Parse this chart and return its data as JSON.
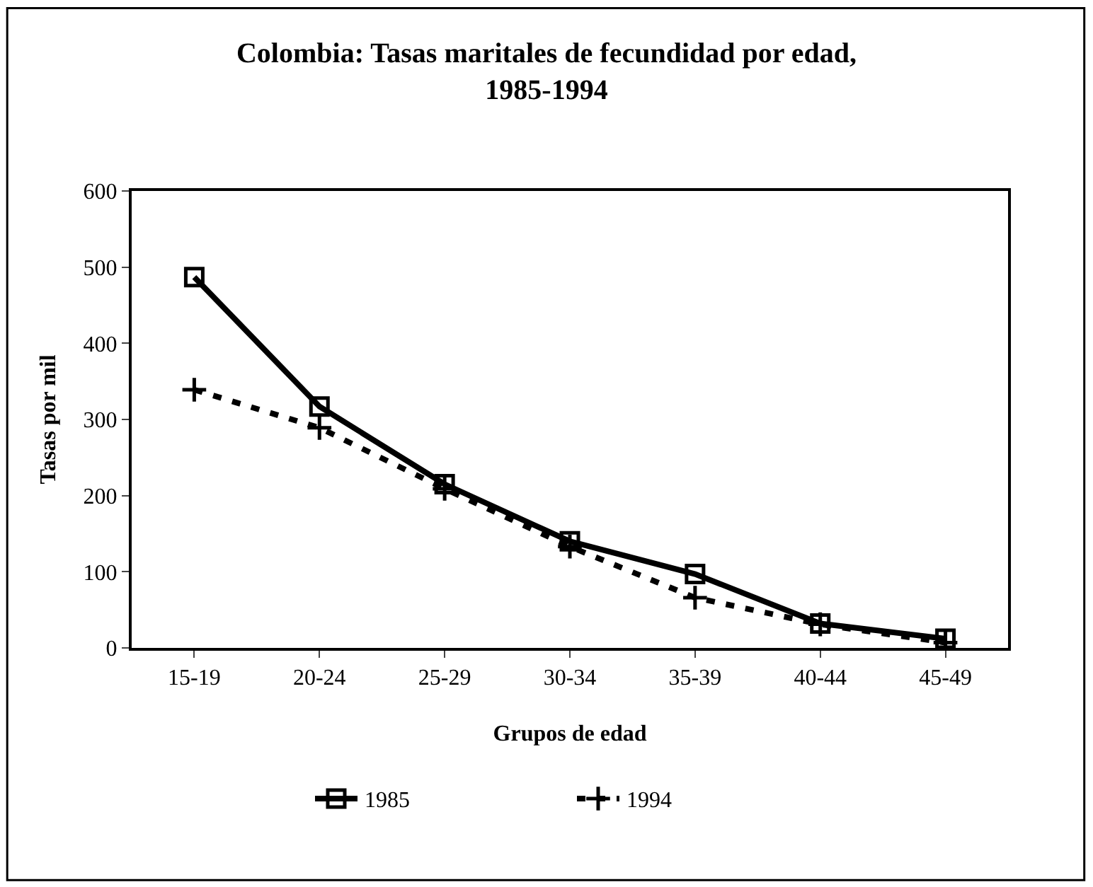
{
  "chart_data": {
    "type": "line",
    "title": "Colombia: Tasas maritales de fecundidad por edad,\n1985-1994",
    "xlabel": "Grupos de edad",
    "ylabel": "Tasas por mil",
    "categories": [
      "15-19",
      "20-24",
      "25-29",
      "30-34",
      "35-39",
      "40-44",
      "45-49"
    ],
    "series": [
      {
        "name": "1985",
        "color": "#000000",
        "values": [
          487,
          317,
          215,
          140,
          97,
          32,
          12
        ],
        "marker": "square",
        "line_style": "solid"
      },
      {
        "name": "1994",
        "color": "#000000",
        "values": [
          339,
          289,
          209,
          133,
          66,
          31,
          7
        ],
        "marker": "cross",
        "line_style": "dashed"
      }
    ],
    "ylim": [
      0,
      600
    ],
    "yticks": [
      0,
      100,
      200,
      300,
      400,
      500,
      600
    ],
    "legend": "bottom"
  }
}
